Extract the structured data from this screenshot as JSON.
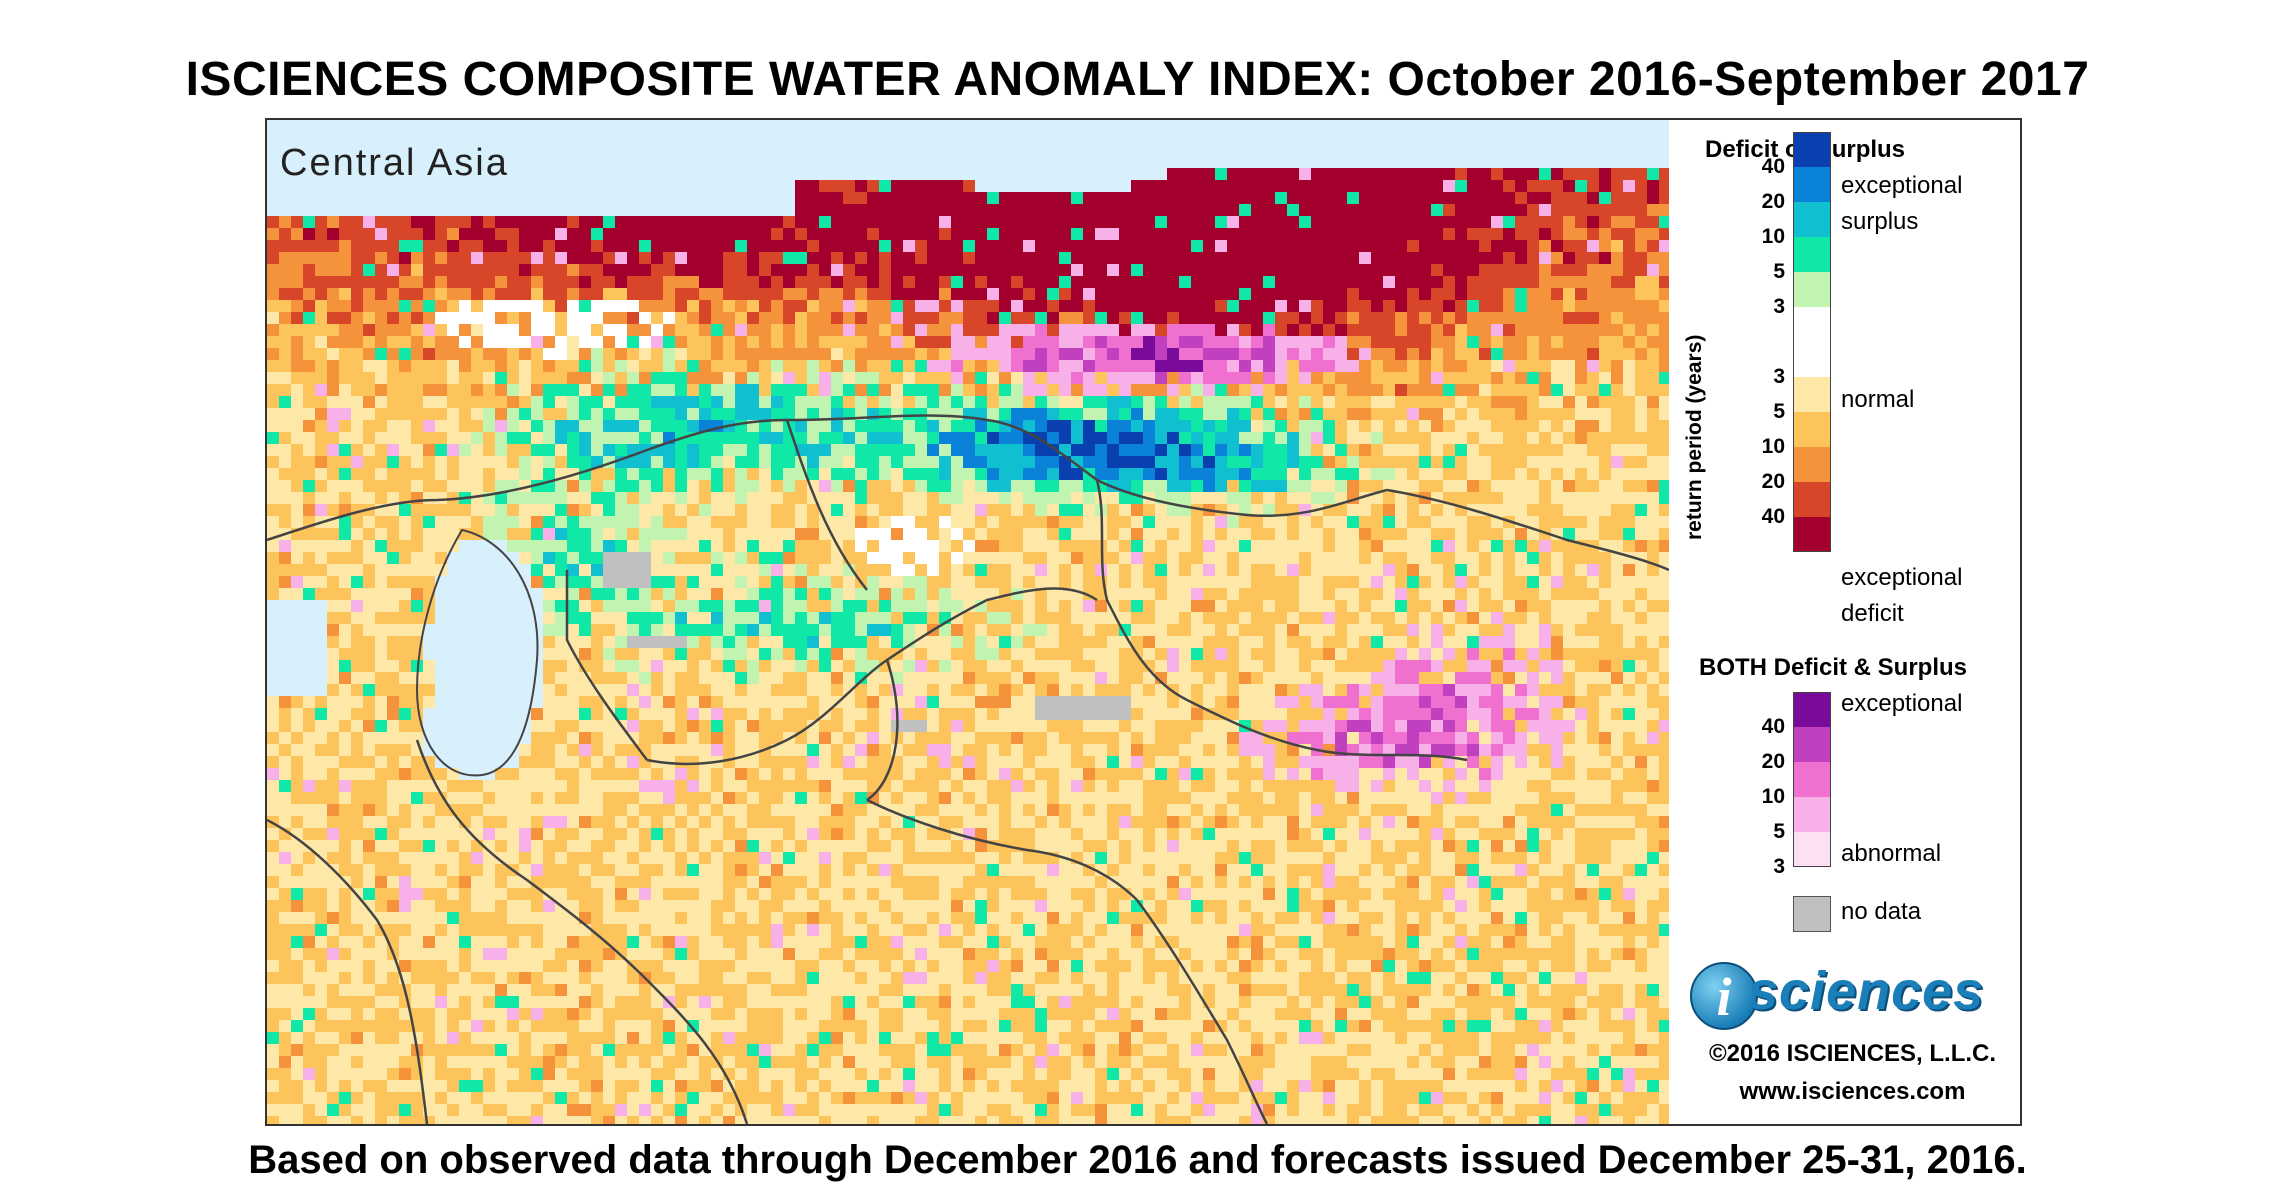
{
  "title": "ISCIENCES COMPOSITE WATER ANOMALY INDEX: October 2016-September 2017",
  "footer": "Based on observed data through December 2016 and forecasts issued December 25-31, 2016.",
  "region_label": "Central Asia",
  "legend": {
    "section1_title": "Deficit or Surplus",
    "axis_title": "return period (years)",
    "surplus_label_1": "exceptional",
    "surplus_label_2": "surplus",
    "normal_label": "normal",
    "deficit_label_1": "exceptional",
    "deficit_label_2": "deficit",
    "surplus_ticks": [
      "40",
      "20",
      "10",
      "5",
      "3"
    ],
    "deficit_ticks": [
      "3",
      "5",
      "10",
      "20",
      "40"
    ],
    "surplus_colors": [
      "#0a3fb0",
      "#0a82d8",
      "#10c0d0",
      "#10e8a8",
      "#c0f4b0"
    ],
    "normal_color": "#ffffff",
    "deficit_colors": [
      "#fde8a8",
      "#fcc45a",
      "#f5923c",
      "#d8462a",
      "#a3002e"
    ],
    "section2_title": "BOTH Deficit & Surplus",
    "both_label_top": "exceptional",
    "both_label_bottom": "abnormal",
    "both_ticks": [
      "40",
      "20",
      "10",
      "5",
      "3"
    ],
    "both_colors": [
      "#7a0a9a",
      "#c040c0",
      "#f070d0",
      "#f8b0e8",
      "#fde0f4"
    ],
    "nodata_label": "no data",
    "nodata_color": "#c0c0c0"
  },
  "colors": {
    "water": "#d8f0fb",
    "border": "#444444"
  },
  "logo_text": "sciences",
  "logo_letter": "i",
  "copyright": "©2016 ISCIENCES, L.L.C.",
  "website": "www.isciences.com"
}
